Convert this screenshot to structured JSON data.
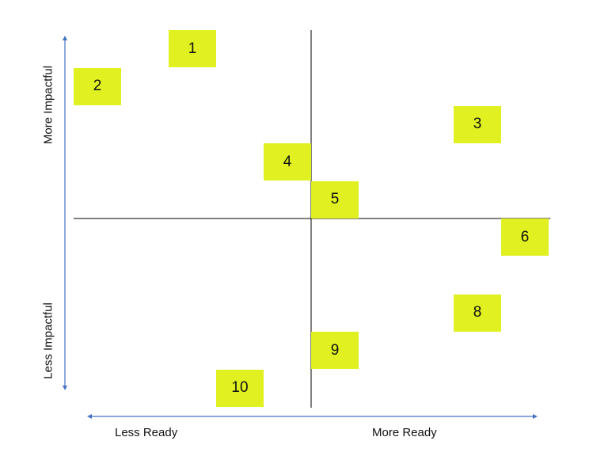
{
  "colors": {
    "box_fill": "#e0f020",
    "axis_arrow": "#4472c4",
    "quadrant_line": "#000000"
  },
  "labels": {
    "more_impactful": "More Impactful",
    "less_impactful": "Less Impactful",
    "less_ready": "Less Ready",
    "more_ready": "More Ready"
  },
  "items": [
    {
      "label": "1",
      "readiness": -0.5,
      "impact": 0.9
    },
    {
      "label": "2",
      "readiness": -0.9,
      "impact": 0.7
    },
    {
      "label": "3",
      "readiness": 0.7,
      "impact": 0.5
    },
    {
      "label": "4",
      "readiness": -0.1,
      "impact": 0.3
    },
    {
      "label": "5",
      "readiness": 0.1,
      "impact": 0.1
    },
    {
      "label": "6",
      "readiness": 0.9,
      "impact": -0.1
    },
    {
      "label": "8",
      "readiness": 0.7,
      "impact": -0.5
    },
    {
      "label": "9",
      "readiness": 0.1,
      "impact": -0.7
    },
    {
      "label": "10",
      "readiness": -0.3,
      "impact": -0.9
    }
  ]
}
